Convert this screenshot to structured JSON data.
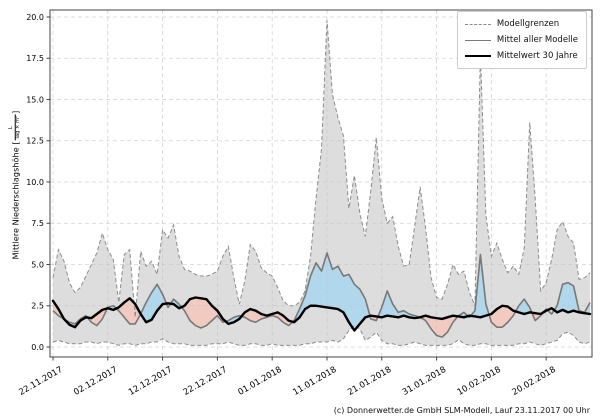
{
  "chart_data": {
    "type": "line",
    "title": "",
    "ylabel_text": "Mittlere Niederschlagshöhe",
    "unit_prefix": "[",
    "unit_numerator": "L",
    "unit_denominator": "Tag × m²",
    "unit_suffix": "]",
    "xlabel": "",
    "ylim": [
      0,
      20
    ],
    "grid": true,
    "legend_position": "top-right",
    "y_tick_labels": [
      "0.0",
      "2.5",
      "5.0",
      "7.5",
      "10.0",
      "12.5",
      "15.0",
      "17.5",
      "20.0"
    ],
    "y_tick_values": [
      0,
      2.5,
      5,
      7.5,
      10,
      12.5,
      15,
      17.5,
      20
    ],
    "x_tick_labels": [
      "22.11.2017",
      "02.12.2017",
      "12.12.2017",
      "22.12.2017",
      "01.01.2018",
      "11.01.2018",
      "21.01.2018",
      "31.01.2018",
      "10.02.2018",
      "20.02.2018"
    ],
    "x_tick_days": [
      0,
      10,
      20,
      30,
      40,
      50,
      60,
      70,
      80,
      90
    ],
    "days_total": 99,
    "legend": [
      {
        "label": "Modellgrenzen",
        "style": "dashed-gray"
      },
      {
        "label": "Mittel aller Modelle",
        "style": "solid-gray"
      },
      {
        "label": "Mittelwert 30 Jahre",
        "style": "solid-black-thick"
      }
    ],
    "colors": {
      "band_fill": "#d7d7d7",
      "band_edge": "#8c8c8c",
      "above_fill_blue": "#aed6ec",
      "below_fill_pink": "#f2c8bd",
      "model_mean_line": "#787878",
      "mean30_line": "#000000",
      "grid": "#c4c4c4",
      "spine": "#444444"
    },
    "series": [
      {
        "name": "Modellgrenzen (Maximum)",
        "values": [
          4.2,
          5.9,
          5.2,
          3.9,
          3.3,
          3.6,
          4.3,
          5.0,
          5.7,
          6.9,
          5.9,
          5.3,
          2.7,
          5.6,
          5.9,
          1.8,
          5.8,
          4.9,
          5.2,
          4.4,
          7.1,
          6.6,
          7.4,
          5.5,
          4.7,
          4.6,
          4.4,
          4.3,
          4.3,
          4.4,
          4.6,
          5.5,
          6.1,
          4.2,
          2.6,
          4.0,
          6.2,
          5.8,
          4.8,
          4.5,
          4.3,
          3.6,
          2.8,
          2.5,
          2.5,
          2.7,
          3.4,
          5.5,
          9.0,
          12.0,
          19.8,
          15.3,
          13.9,
          12.8,
          8.4,
          10.4,
          8.1,
          6.7,
          9.5,
          12.7,
          9.0,
          7.5,
          7.9,
          6.1,
          4.9,
          5.0,
          7.3,
          9.7,
          7.2,
          4.2,
          3.0,
          2.9,
          3.8,
          5.0,
          4.4,
          4.6,
          3.3,
          2.5,
          17.8,
          8.0,
          5.5,
          6.3,
          5.3,
          4.5,
          4.9,
          4.4,
          6.0,
          13.6,
          9.0,
          3.4,
          3.9,
          5.3,
          7.1,
          7.6,
          6.7,
          6.3,
          4.1,
          4.2,
          4.5
        ]
      },
      {
        "name": "Modellgrenzen (Minimum)",
        "values": [
          0.3,
          0.4,
          0.3,
          0.2,
          0.2,
          0.2,
          0.3,
          0.3,
          0.2,
          0.3,
          0.3,
          0.2,
          0.1,
          0.2,
          0.2,
          0.1,
          0.2,
          0.2,
          0.3,
          0.3,
          0.5,
          0.3,
          0.2,
          0.2,
          0.2,
          0.1,
          0.1,
          0.1,
          0.1,
          0.2,
          0.2,
          0.2,
          0.3,
          0.2,
          0.1,
          0.1,
          0.2,
          0.2,
          0.1,
          0.1,
          0.2,
          0.1,
          0.1,
          0.1,
          0.1,
          0.1,
          0.2,
          0.2,
          0.3,
          0.3,
          0.3,
          0.4,
          0.3,
          0.5,
          1.0,
          1.3,
          1.1,
          0.4,
          0.6,
          0.9,
          0.4,
          0.2,
          0.2,
          0.1,
          0.1,
          0.2,
          0.3,
          0.2,
          0.1,
          0.1,
          0.1,
          0.1,
          0.1,
          0.2,
          0.45,
          0.2,
          0.1,
          0.1,
          0.2,
          0.2,
          0.1,
          0.1,
          0.1,
          0.1,
          0.1,
          0.2,
          0.2,
          0.3,
          0.2,
          0.1,
          0.2,
          0.3,
          0.4,
          0.8,
          0.9,
          0.7,
          0.3,
          0.2,
          0.3
        ]
      },
      {
        "name": "Mittel aller Modelle",
        "values": [
          2.2,
          1.9,
          1.7,
          1.5,
          1.4,
          1.7,
          1.9,
          1.5,
          1.3,
          1.7,
          2.4,
          2.5,
          2.2,
          1.8,
          1.4,
          1.4,
          2.0,
          2.7,
          3.3,
          3.8,
          3.2,
          2.4,
          2.9,
          2.6,
          2.2,
          1.6,
          1.3,
          1.15,
          1.3,
          1.6,
          1.9,
          1.5,
          1.6,
          1.8,
          1.9,
          1.8,
          1.6,
          1.5,
          1.7,
          1.8,
          1.9,
          1.8,
          1.5,
          1.3,
          1.6,
          2.3,
          3.1,
          4.3,
          5.1,
          4.6,
          5.7,
          4.7,
          4.9,
          4.3,
          4.4,
          3.8,
          3.5,
          2.9,
          1.7,
          1.6,
          2.4,
          3.4,
          2.6,
          2.1,
          2.2,
          2.0,
          1.9,
          1.8,
          1.6,
          1.1,
          0.7,
          0.6,
          0.9,
          1.5,
          1.9,
          2.1,
          1.8,
          2.2,
          5.6,
          2.6,
          1.5,
          1.2,
          1.2,
          1.5,
          1.9,
          2.5,
          2.9,
          2.4,
          1.6,
          1.9,
          2.3,
          2.0,
          2.5,
          3.8,
          3.9,
          3.7,
          2.2,
          2.1,
          2.7
        ]
      },
      {
        "name": "Mittelwert 30 Jahre",
        "values": [
          2.8,
          2.3,
          1.7,
          1.35,
          1.2,
          1.6,
          1.8,
          1.75,
          2.0,
          2.25,
          2.35,
          2.25,
          2.4,
          2.7,
          2.95,
          2.6,
          2.0,
          1.5,
          1.65,
          2.2,
          2.6,
          2.65,
          2.6,
          2.35,
          2.5,
          2.9,
          3.0,
          2.95,
          2.9,
          2.5,
          2.2,
          1.7,
          1.4,
          1.5,
          1.7,
          2.1,
          2.3,
          2.2,
          2.0,
          1.9,
          2.0,
          2.1,
          1.9,
          1.6,
          1.5,
          1.8,
          2.3,
          2.5,
          2.5,
          2.45,
          2.4,
          2.35,
          2.3,
          2.1,
          1.5,
          1.0,
          1.4,
          1.8,
          1.9,
          1.85,
          1.8,
          1.9,
          1.85,
          1.8,
          1.9,
          1.8,
          1.75,
          1.8,
          1.9,
          1.8,
          1.75,
          1.7,
          1.8,
          1.9,
          1.85,
          1.8,
          1.9,
          1.85,
          1.8,
          1.9,
          2.0,
          2.3,
          2.5,
          2.45,
          2.2,
          2.1,
          2.0,
          2.1,
          2.05,
          2.0,
          2.2,
          2.35,
          2.1,
          2.25,
          2.1,
          2.2,
          2.1,
          2.05,
          2.0
        ]
      }
    ]
  },
  "footer": {
    "text": "(c) Donnerwetter.de GmbH SLM-Modell, Lauf 23.11.2017 00 Uhr"
  }
}
